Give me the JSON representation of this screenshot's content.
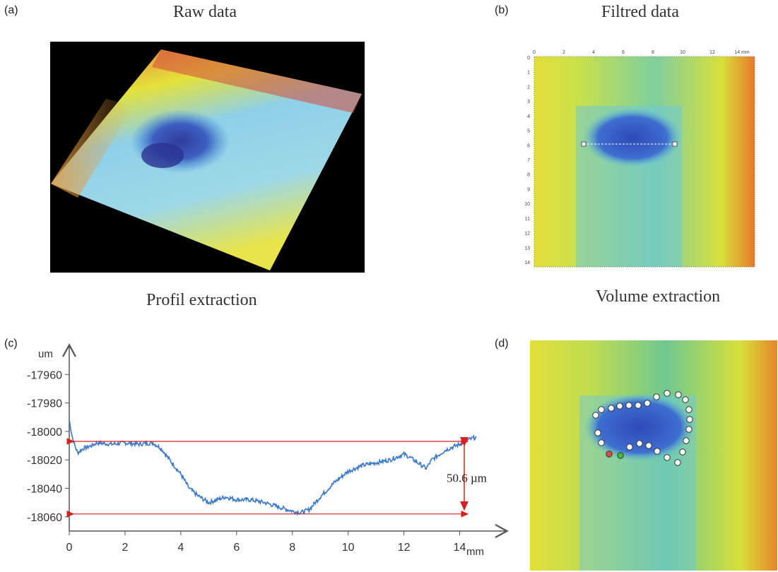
{
  "panels": {
    "a": {
      "label": "(a)",
      "title": "Raw data"
    },
    "b": {
      "label": "(b)",
      "title": "Filtred data"
    },
    "c": {
      "label": "(c)",
      "title": "Profil extraction"
    },
    "d": {
      "label": "(d)",
      "title": "Volume extraction"
    }
  },
  "map_b": {
    "x_ticks": [
      "0",
      "2",
      "4",
      "6",
      "8",
      "10",
      "12",
      "14 mm"
    ],
    "y_ticks": [
      "0",
      "1",
      "2",
      "3",
      "4",
      "5",
      "6",
      "7",
      "8",
      "9",
      "10",
      "11",
      "12",
      "13",
      "14"
    ]
  },
  "colors": {
    "profile_line": "#3a78c8",
    "arrow": "#d42020",
    "surface_high": "#d2362b",
    "surface_mid": "#e3e23a",
    "surface_low": "#2f3b9c",
    "point_fill": "#ffffff",
    "point_red": "#e54b3c",
    "point_green": "#3fbf3a"
  },
  "chart_data": {
    "type": "line",
    "title": "",
    "xlabel": "mm",
    "ylabel": "um",
    "xlim": [
      0,
      15
    ],
    "ylim": [
      -18070,
      -17940
    ],
    "x_ticks": [
      0,
      2,
      4,
      6,
      8,
      10,
      12,
      14
    ],
    "y_ticks": [
      -17960,
      -17980,
      -18000,
      -18020,
      -18040,
      -18060
    ],
    "series": [
      {
        "x": [
          0,
          0.1,
          0.2,
          0.3,
          0.5,
          0.8,
          1,
          1.5,
          2,
          2.5,
          3,
          3.3,
          3.6,
          4,
          4.3,
          4.6,
          5,
          5.3,
          5.6,
          6,
          6.5,
          7,
          7.5,
          8,
          8.3,
          8.6,
          9,
          9.5,
          10,
          10.5,
          11,
          11.5,
          12,
          12.2,
          12.5,
          12.8,
          13,
          13.5,
          14,
          14.3,
          14.6
        ],
        "y": [
          -17992,
          -18003,
          -18010,
          -18015,
          -18012,
          -18010,
          -18008,
          -18009,
          -18008,
          -18009,
          -18008,
          -18012,
          -18020,
          -18030,
          -18040,
          -18045,
          -18050,
          -18048,
          -18046,
          -18048,
          -18048,
          -18050,
          -18053,
          -18056,
          -18057,
          -18055,
          -18046,
          -18036,
          -18028,
          -18024,
          -18022,
          -18020,
          -18016,
          -18018,
          -18022,
          -18026,
          -18020,
          -18013,
          -18009,
          -18006,
          -18004
        ]
      }
    ],
    "annotations": [
      {
        "text": "50.6 µm",
        "from": -18007,
        "to": -18058
      }
    ],
    "reference_lines": [
      -18007,
      -18058
    ]
  }
}
